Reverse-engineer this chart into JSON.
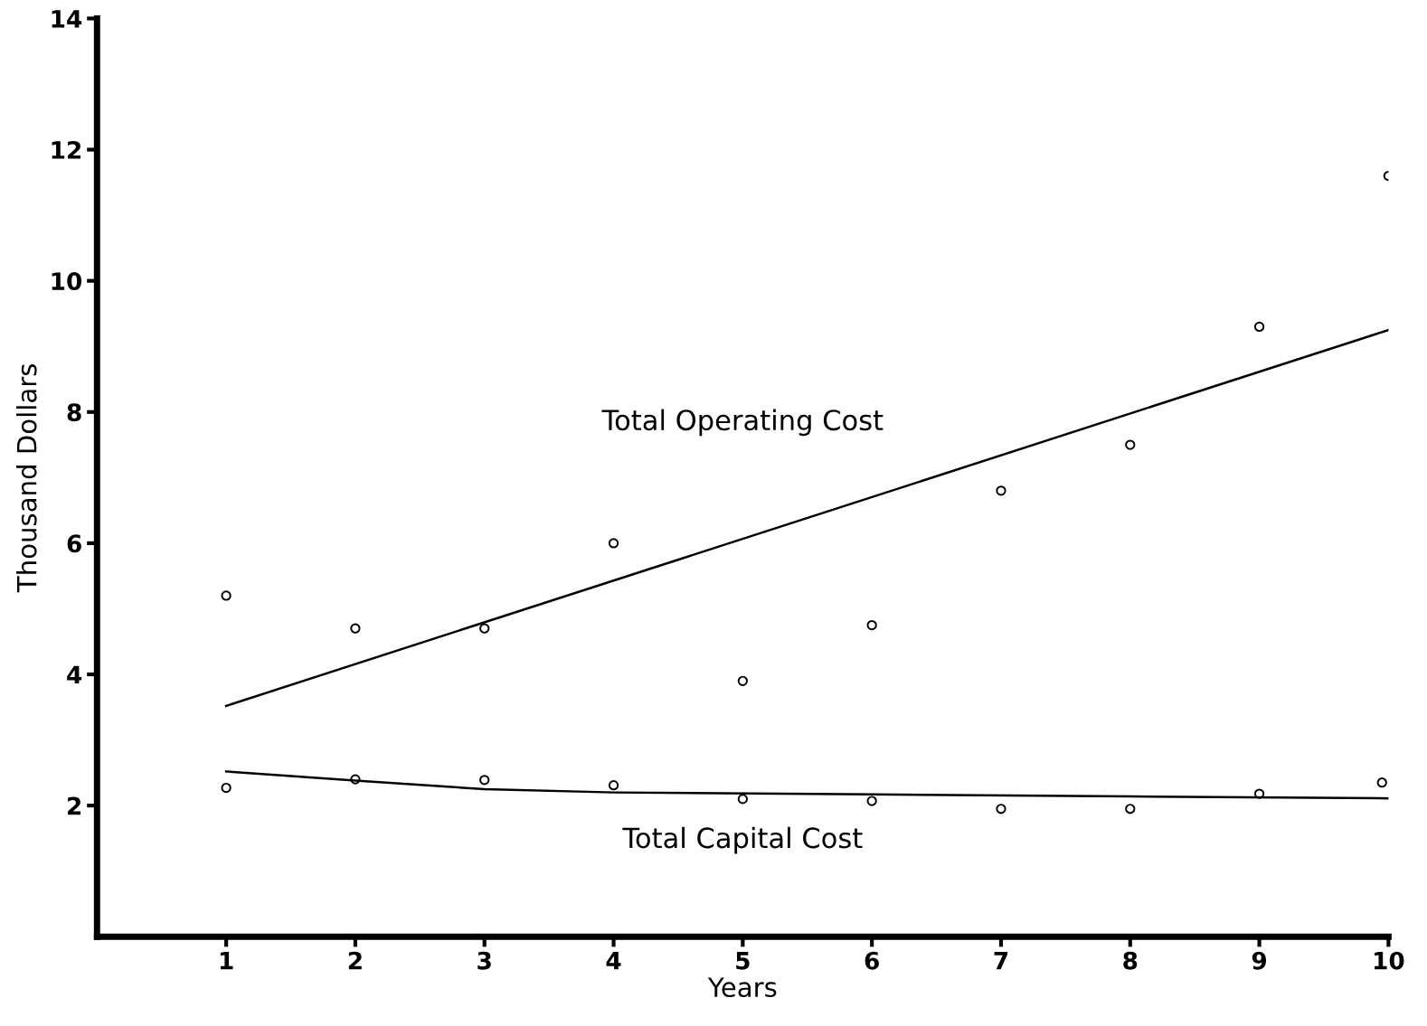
{
  "chart_data": {
    "type": "scatter",
    "xlabel": "Years",
    "ylabel": "Thousand Dollars",
    "xlim": [
      0,
      10
    ],
    "xticks": [
      1,
      2,
      3,
      4,
      5,
      6,
      7,
      8,
      9,
      10
    ],
    "ylim": [
      0,
      14
    ],
    "yticks": [
      2,
      4,
      6,
      8,
      10,
      12,
      14
    ],
    "grid": false,
    "legend": false,
    "marker": "circle",
    "series": [
      {
        "color": "#000000",
        "x": [
          1,
          2,
          3,
          4,
          5,
          6,
          7,
          8,
          9,
          10
        ],
        "values": [
          5.2,
          4.7,
          4.7,
          6.0,
          3.9,
          4.75,
          6.8,
          7.5,
          9.3,
          11.6
        ]
      },
      {
        "color": "#000000",
        "x": [
          1,
          2,
          3,
          4,
          5,
          6,
          7,
          8,
          9,
          9.95
        ],
        "values": [
          2.27,
          2.4,
          2.39,
          2.31,
          2.1,
          2.07,
          1.95,
          1.95,
          2.18,
          2.35
        ]
      },
      {
        "type": "line",
        "color": "#000000",
        "marker": "none",
        "line_style": "solid",
        "x": [
          1,
          10
        ],
        "values": [
          3.52,
          9.25
        ]
      },
      {
        "type": "line",
        "color": "#000000",
        "marker": "none",
        "line_style": "solid",
        "x": [
          1,
          2,
          3,
          4,
          6,
          8,
          10
        ],
        "values": [
          2.52,
          2.38,
          2.25,
          2.2,
          2.17,
          2.14,
          2.11
        ]
      }
    ],
    "annotations": [
      "Total Operating Cost",
      "Total Capital Cost"
    ]
  }
}
